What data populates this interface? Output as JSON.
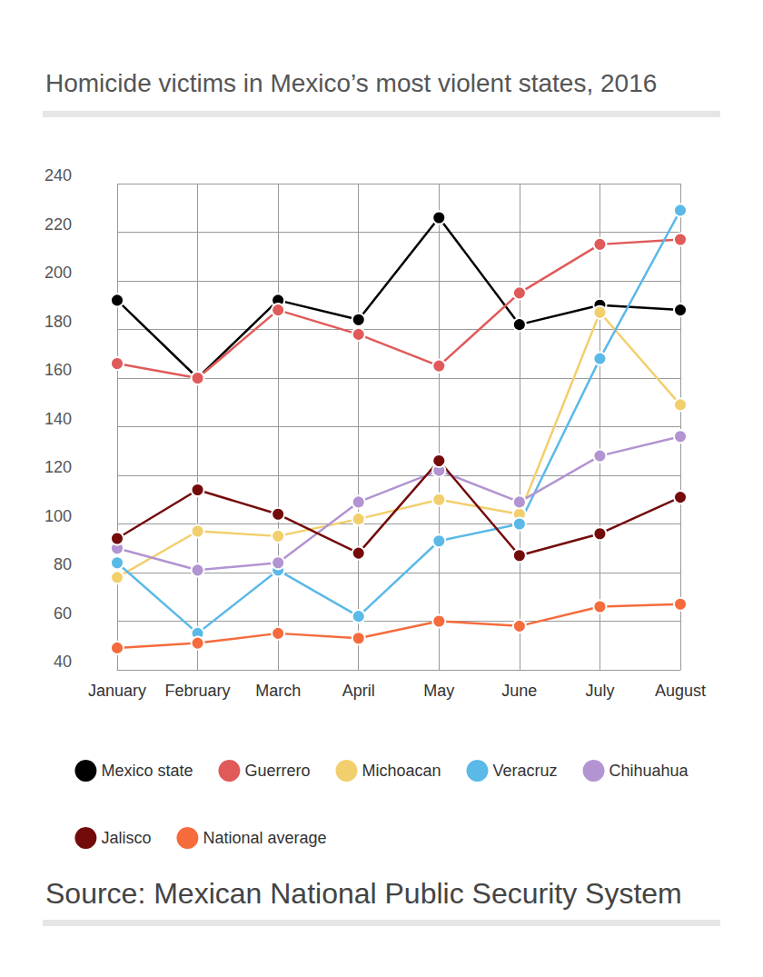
{
  "chart_data": {
    "type": "line",
    "title": "Homicide victims in Mexico’s most violent states, 2016",
    "source": "Source: Mexican National Public Security System",
    "categories": [
      "January",
      "February",
      "March",
      "April",
      "May",
      "June",
      "July",
      "August"
    ],
    "series": [
      {
        "name": "Mexico state",
        "color": "#000000",
        "values": [
          192,
          160,
          192,
          184,
          226,
          182,
          190,
          188
        ]
      },
      {
        "name": "Guerrero",
        "color": "#e05a5a",
        "values": [
          166,
          160,
          188,
          178,
          165,
          195,
          215,
          217
        ]
      },
      {
        "name": "Michoacan",
        "color": "#f2cf6d",
        "values": [
          78,
          97,
          95,
          102,
          110,
          104,
          187,
          149
        ]
      },
      {
        "name": "Veracruz",
        "color": "#5bb9e8",
        "values": [
          84,
          55,
          81,
          62,
          93,
          100,
          168,
          229
        ]
      },
      {
        "name": "Chihuahua",
        "color": "#b194d1",
        "values": [
          90,
          81,
          84,
          109,
          122,
          109,
          128,
          136
        ]
      },
      {
        "name": "Jalisco",
        "color": "#740b0b",
        "values": [
          94,
          114,
          104,
          88,
          126,
          87,
          96,
          111
        ]
      },
      {
        "name": "National average",
        "color": "#f56b3c",
        "values": [
          49,
          51,
          55,
          53,
          60,
          58,
          66,
          67
        ]
      }
    ],
    "ylim": [
      40,
      240
    ],
    "yticks": [
      40,
      60,
      80,
      100,
      120,
      140,
      160,
      180,
      200,
      220,
      240
    ],
    "grid": true,
    "legend": "bottom",
    "marker": "circle"
  }
}
